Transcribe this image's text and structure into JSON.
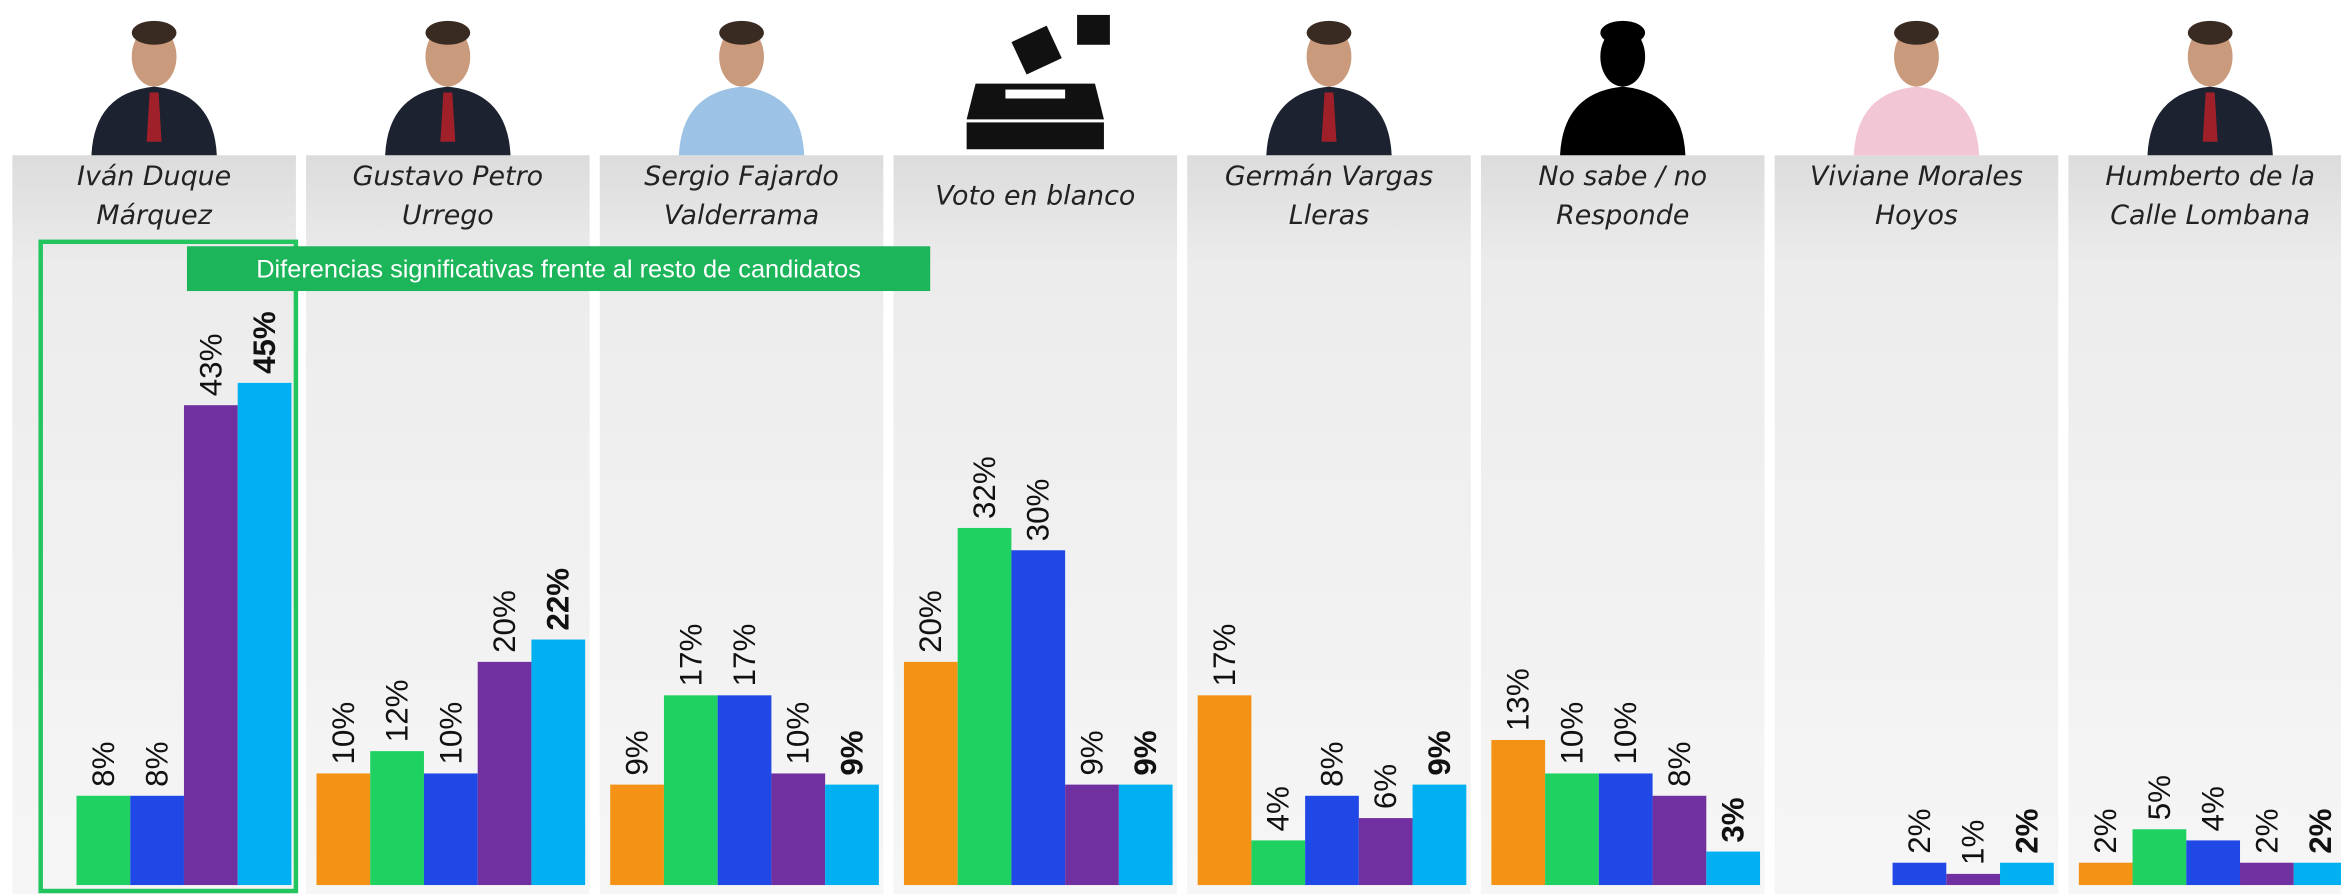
{
  "chart_data": {
    "type": "bar",
    "categories": [
      "Iván Duque Márquez",
      "Gustavo Petro Urrego",
      "Sergio Fajardo Valderrama",
      "Voto en blanco",
      "Germán Vargas Lleras",
      "No sabe / no Responde",
      "Viviane Morales Hoyos",
      "Humberto de la Calle Lombana"
    ],
    "annotation": "Diferencias significativas frente al resto de candidatos",
    "ylim": [
      0,
      65
    ],
    "series": [
      {
        "color": "#f39214",
        "values": [
          null,
          10,
          9,
          20,
          17,
          13,
          null,
          2
        ],
        "value_labels": [
          null,
          "10%",
          "9%",
          "20%",
          "17%",
          "13%",
          null,
          "2%"
        ]
      },
      {
        "color": "#1fd160",
        "values": [
          8,
          12,
          17,
          32,
          4,
          10,
          null,
          5
        ],
        "value_labels": [
          "8%",
          "12%",
          "17%",
          "32%",
          "4%",
          "10%",
          null,
          "5%"
        ]
      },
      {
        "color": "#1f48e6",
        "values": [
          8,
          10,
          17,
          30,
          8,
          10,
          2,
          4
        ],
        "value_labels": [
          "8%",
          "10%",
          "17%",
          "30%",
          "8%",
          "10%",
          "2%",
          "4%"
        ]
      },
      {
        "color": "#7030a0",
        "values": [
          43,
          20,
          10,
          9,
          6,
          8,
          1,
          2
        ],
        "value_labels": [
          "43%",
          "20%",
          "10%",
          "9%",
          "6%",
          "8%",
          "1%",
          "2%"
        ]
      },
      {
        "color": "#00b0f0",
        "values": [
          45,
          22,
          9,
          9,
          9,
          3,
          2,
          2
        ],
        "value_labels": [
          "45%",
          "22%",
          "9%",
          "9%",
          "9%",
          "3%",
          "2%",
          "2%"
        ]
      }
    ]
  }
}
